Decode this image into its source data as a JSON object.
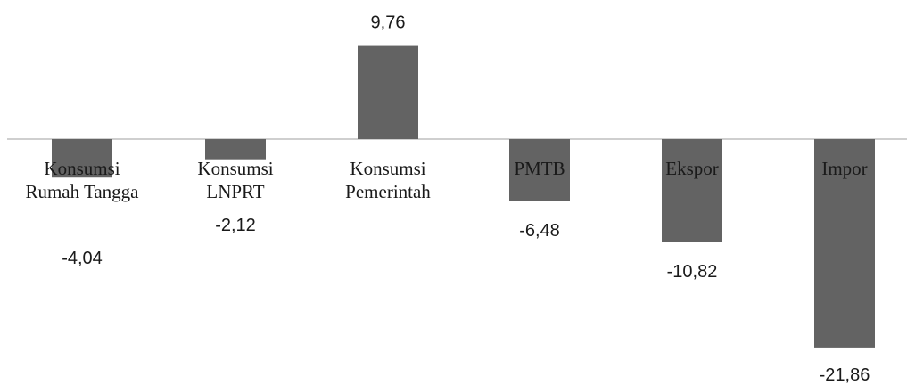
{
  "chart_data": {
    "type": "bar",
    "categories": [
      [
        "Konsumsi",
        "Rumah Tangga"
      ],
      [
        "Konsumsi",
        "LNPRT"
      ],
      [
        "Konsumsi",
        "Pemerintah"
      ],
      [
        "PMTB"
      ],
      [
        "Ekspor"
      ],
      [
        "Impor"
      ]
    ],
    "values": [
      -4.04,
      -2.12,
      9.76,
      -6.48,
      -10.82,
      -21.86
    ],
    "data_labels": [
      "-4,04",
      "-2,12",
      "9,76",
      "-6,48",
      "-10,82",
      "-21,86"
    ],
    "title": "",
    "xlabel": "",
    "ylabel": "",
    "bar_color": "#636363",
    "axis_color": "#bfbfbf",
    "grid": false,
    "legend": "none"
  }
}
